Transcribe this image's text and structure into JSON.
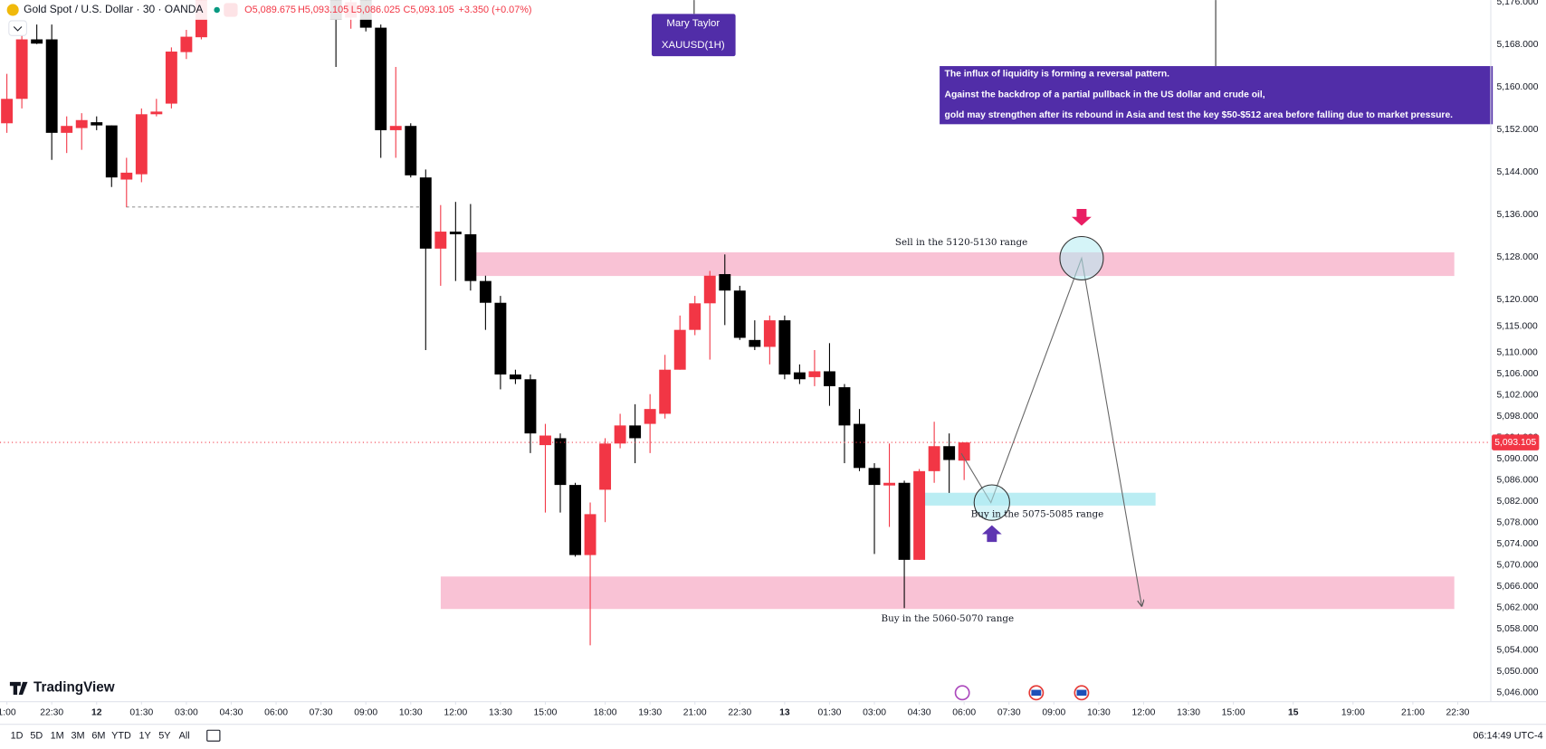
{
  "chart_data": {
    "type": "candlestick",
    "symbol": "Gold Spot / U.S. Dollar · 30 · OANDA",
    "ohlc_legend": [
      "O5,089.675",
      "H5,093.105",
      "L5,086.025",
      "C5,093.105",
      "+3.350 (+0.07%)"
    ],
    "author": "Mary Taylor",
    "author_symbol": "XAUUSD(1H)",
    "note": [
      "The influx of liquidity is forming a reversal pattern.",
      "Against the backdrop of a partial pullback in the US dollar and crude oil,",
      "gold may strengthen after its rebound in Asia and test the key $50-$512 area before falling due to market pressure."
    ],
    "zone_labels": [
      "Sell in the 5120-5130 range",
      "Buy in the 5075-5085 range",
      "Buy in the 5060-5070 range"
    ],
    "up_color": "#f23645",
    "down_color": "#000000",
    "grid": false,
    "x": [
      -6,
      -5,
      -4,
      -3,
      -2,
      -1,
      0,
      1,
      2,
      3,
      4,
      5,
      6,
      7,
      16,
      17,
      18,
      19,
      20,
      21,
      22,
      23,
      24,
      25,
      26,
      27,
      28,
      29,
      30,
      31,
      32,
      33,
      34,
      35,
      36,
      37,
      38,
      39,
      40,
      41,
      42,
      43,
      44,
      45,
      46,
      47,
      48,
      49,
      50,
      51,
      52,
      53,
      54,
      55,
      56,
      57,
      58
    ],
    "open": [
      5153.2,
      5157.8,
      5169.0,
      5169.0,
      5151.4,
      5152.3,
      5153.4,
      5152.8,
      5142.6,
      5143.6,
      5154.9,
      5156.9,
      5166.6,
      5169.4,
      5178.0,
      5173.1,
      5177.5,
      5171.2,
      5151.9,
      5152.7,
      5143.0,
      5129.6,
      5132.8,
      5132.3,
      5123.5,
      5119.4,
      5105.9,
      5105.0,
      5092.6,
      5093.9,
      5085.1,
      5071.9,
      5084.2,
      5092.9,
      5096.3,
      5096.6,
      5098.5,
      5106.8,
      5114.3,
      5119.3,
      5124.8,
      5121.7,
      5112.4,
      5111.1,
      5116.1,
      5106.3,
      5105.4,
      5106.5,
      5103.5,
      5096.6,
      5088.3,
      5085.0,
      5085.5,
      5071.0,
      5087.7,
      5092.4,
      5089.675
    ],
    "high": [
      5162.5,
      5170.8,
      5171.8,
      5171.8,
      5154.5,
      5155.1,
      5154.5,
      5152.8,
      5146.7,
      5156.0,
      5157.8,
      5167.5,
      5170.8,
      5180.0,
      5181.0,
      5178.0,
      5179.0,
      5171.8,
      5163.8,
      5153.2,
      5144.5,
      5137.8,
      5138.4,
      5138.0,
      5124.5,
      5120.7,
      5106.8,
      5105.9,
      5096.6,
      5094.8,
      5085.5,
      5081.8,
      5093.9,
      5098.5,
      5100.3,
      5102.2,
      5109.6,
      5117.0,
      5120.7,
      5125.4,
      5128.5,
      5122.6,
      5116.1,
      5117.0,
      5117.0,
      5107.8,
      5110.5,
      5111.8,
      5104.1,
      5099.4,
      5089.2,
      5092.9,
      5085.9,
      5088.1,
      5097.0,
      5094.8,
      5093.105
    ],
    "low": [
      5151.4,
      5156.0,
      5168.1,
      5146.3,
      5147.6,
      5148.2,
      5151.9,
      5141.2,
      5137.4,
      5142.1,
      5154.5,
      5156.0,
      5165.3,
      5169.0,
      5163.8,
      5171.0,
      5170.5,
      5146.7,
      5146.7,
      5143.0,
      5110.5,
      5122.6,
      5123.5,
      5121.7,
      5114.3,
      5103.1,
      5104.1,
      5091.1,
      5079.9,
      5079.9,
      5071.6,
      5054.9,
      5078.1,
      5092.0,
      5089.2,
      5091.1,
      5097.6,
      5106.8,
      5113.3,
      5108.7,
      5115.2,
      5112.4,
      5110.5,
      5107.8,
      5105.0,
      5104.1,
      5103.7,
      5100.0,
      5089.2,
      5087.7,
      5072.1,
      5077.2,
      5061.9,
      5071.0,
      5085.5,
      5083.6,
      5086.025
    ],
    "close": [
      5157.8,
      5169.0,
      5168.2,
      5151.4,
      5152.7,
      5153.8,
      5152.8,
      5143.0,
      5143.9,
      5154.9,
      5155.4,
      5166.7,
      5169.5,
      5178.0,
      5172.7,
      5176.0,
      5171.2,
      5151.9,
      5152.7,
      5143.4,
      5129.6,
      5132.8,
      5132.3,
      5123.5,
      5119.4,
      5105.9,
      5105.0,
      5094.8,
      5094.4,
      5085.1,
      5071.9,
      5079.6,
      5092.9,
      5096.3,
      5093.9,
      5099.4,
      5106.8,
      5114.3,
      5119.3,
      5124.5,
      5121.7,
      5112.8,
      5111.1,
      5116.1,
      5105.9,
      5105.0,
      5106.5,
      5103.7,
      5096.3,
      5088.3,
      5085.1,
      5085.5,
      5071.0,
      5087.7,
      5092.4,
      5089.8,
      5093.105
    ],
    "last_price": {
      "value": 5093.105,
      "label": "5,093.105"
    },
    "xlim": [
      -6.46,
      93.21
    ],
    "ylim": [
      5044.3,
      5176.4
    ],
    "xticks": [
      {
        "value": -6,
        "label": "1:00"
      },
      {
        "value": -3,
        "label": "22:30"
      },
      {
        "value": 0,
        "label": "12"
      },
      {
        "value": 3,
        "label": "01:30"
      },
      {
        "value": 6,
        "label": "03:00"
      },
      {
        "value": 9,
        "label": "04:30"
      },
      {
        "value": 12,
        "label": "06:00"
      },
      {
        "value": 15,
        "label": "07:30"
      },
      {
        "value": 18,
        "label": "09:00"
      },
      {
        "value": 21,
        "label": "10:30"
      },
      {
        "value": 24,
        "label": "12:00"
      },
      {
        "value": 27,
        "label": "13:30"
      },
      {
        "value": 30,
        "label": "15:00"
      },
      {
        "value": 34,
        "label": "18:00"
      },
      {
        "value": 37,
        "label": "19:30"
      },
      {
        "value": 40,
        "label": "21:00"
      },
      {
        "value": 43,
        "label": "22:30"
      },
      {
        "value": 46,
        "label": "13"
      },
      {
        "value": 49,
        "label": "01:30"
      },
      {
        "value": 52,
        "label": "03:00"
      },
      {
        "value": 55,
        "label": "04:30"
      },
      {
        "value": 58,
        "label": "06:00"
      },
      {
        "value": 61,
        "label": "07:30"
      },
      {
        "value": 64,
        "label": "09:00"
      },
      {
        "value": 67,
        "label": "10:30"
      },
      {
        "value": 70,
        "label": "12:00"
      },
      {
        "value": 73,
        "label": "13:30"
      },
      {
        "value": 76,
        "label": "15:00"
      },
      {
        "value": 80,
        "label": "15"
      },
      {
        "value": 84,
        "label": "19:00"
      },
      {
        "value": 88,
        "label": "21:00"
      },
      {
        "value": 91,
        "label": "22:30"
      }
    ],
    "yticks": [
      {
        "value": 5176,
        "label": "5,176.000"
      },
      {
        "value": 5168,
        "label": "5,168.000"
      },
      {
        "value": 5160,
        "label": "5,160.000"
      },
      {
        "value": 5152,
        "label": "5,152.000"
      },
      {
        "value": 5144,
        "label": "5,144.000"
      },
      {
        "value": 5136,
        "label": "5,136.000"
      },
      {
        "value": 5128,
        "label": "5,128.000"
      },
      {
        "value": 5120,
        "label": "5,120.000"
      },
      {
        "value": 5115,
        "label": "5,115.000"
      },
      {
        "value": 5110,
        "label": "5,110.000"
      },
      {
        "value": 5106,
        "label": "5,106.000"
      },
      {
        "value": 5102,
        "label": "5,102.000"
      },
      {
        "value": 5098,
        "label": "5,098.000"
      },
      {
        "value": 5094,
        "label": "5,094.000"
      },
      {
        "value": 5090,
        "label": "5,090.000"
      },
      {
        "value": 5086,
        "label": "5,086.000"
      },
      {
        "value": 5082,
        "label": "5,082.000"
      },
      {
        "value": 5078,
        "label": "5,078.000"
      },
      {
        "value": 5074,
        "label": "5,074.000"
      },
      {
        "value": 5070,
        "label": "5,070.000"
      },
      {
        "value": 5066,
        "label": "5,066.000"
      },
      {
        "value": 5062,
        "label": "5,062.000"
      },
      {
        "value": 5058,
        "label": "5,058.000"
      },
      {
        "value": 5054,
        "label": "5,054.000"
      },
      {
        "value": 5050,
        "label": "5,050.000"
      },
      {
        "value": 5046,
        "label": "5,046.000"
      }
    ],
    "logo": "TradingView",
    "periods": [
      "1D",
      "5D",
      "1M",
      "3M",
      "6M",
      "YTD",
      "1Y",
      "5Y",
      "All"
    ],
    "clock": "06:14:49 UTC-4"
  }
}
